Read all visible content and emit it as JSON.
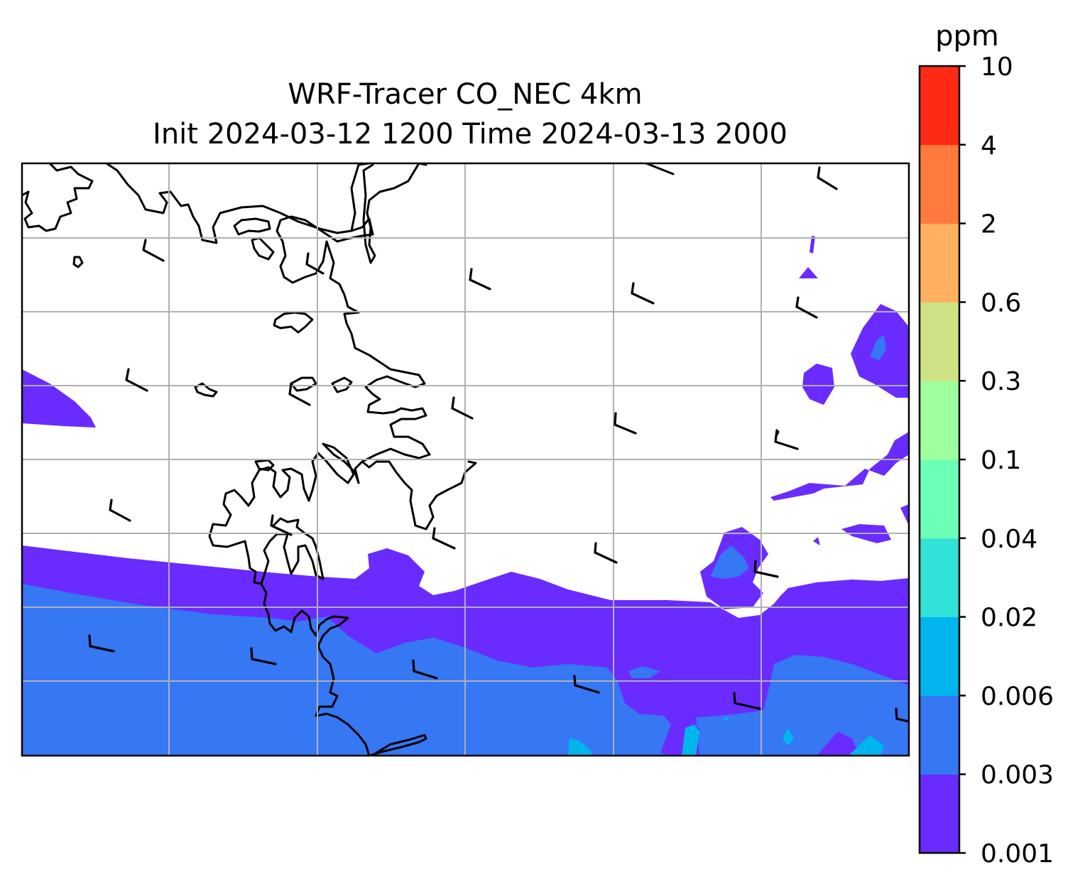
{
  "title_line1": "WRF-Tracer CO_NEC 4km",
  "title_line2": "Init 2024-03-12 1200 Time 2024-03-13 2000",
  "colorbar": {
    "unit": "ppm",
    "ticks": [
      "0.001",
      "0.003",
      "0.006",
      "0.02",
      "0.04",
      "0.1",
      "0.3",
      "0.6",
      "2",
      "4",
      "10"
    ],
    "colors": [
      "#6a2bff",
      "#3677f4",
      "#00b5ed",
      "#33e2d6",
      "#6cffb8",
      "#9dff9d",
      "#cfe285",
      "#ffb160",
      "#ff7a3c",
      "#ff2a16"
    ]
  },
  "chart_data": {
    "type": "contourf",
    "field": "CO_NEC tracer concentration",
    "unit": "ppm",
    "levels": [
      0.001,
      0.003,
      0.006,
      0.02,
      0.04,
      0.1,
      0.3,
      0.6,
      2,
      4,
      10
    ],
    "grid": true,
    "overlays": [
      "coastlines",
      "wind-barbs"
    ]
  }
}
